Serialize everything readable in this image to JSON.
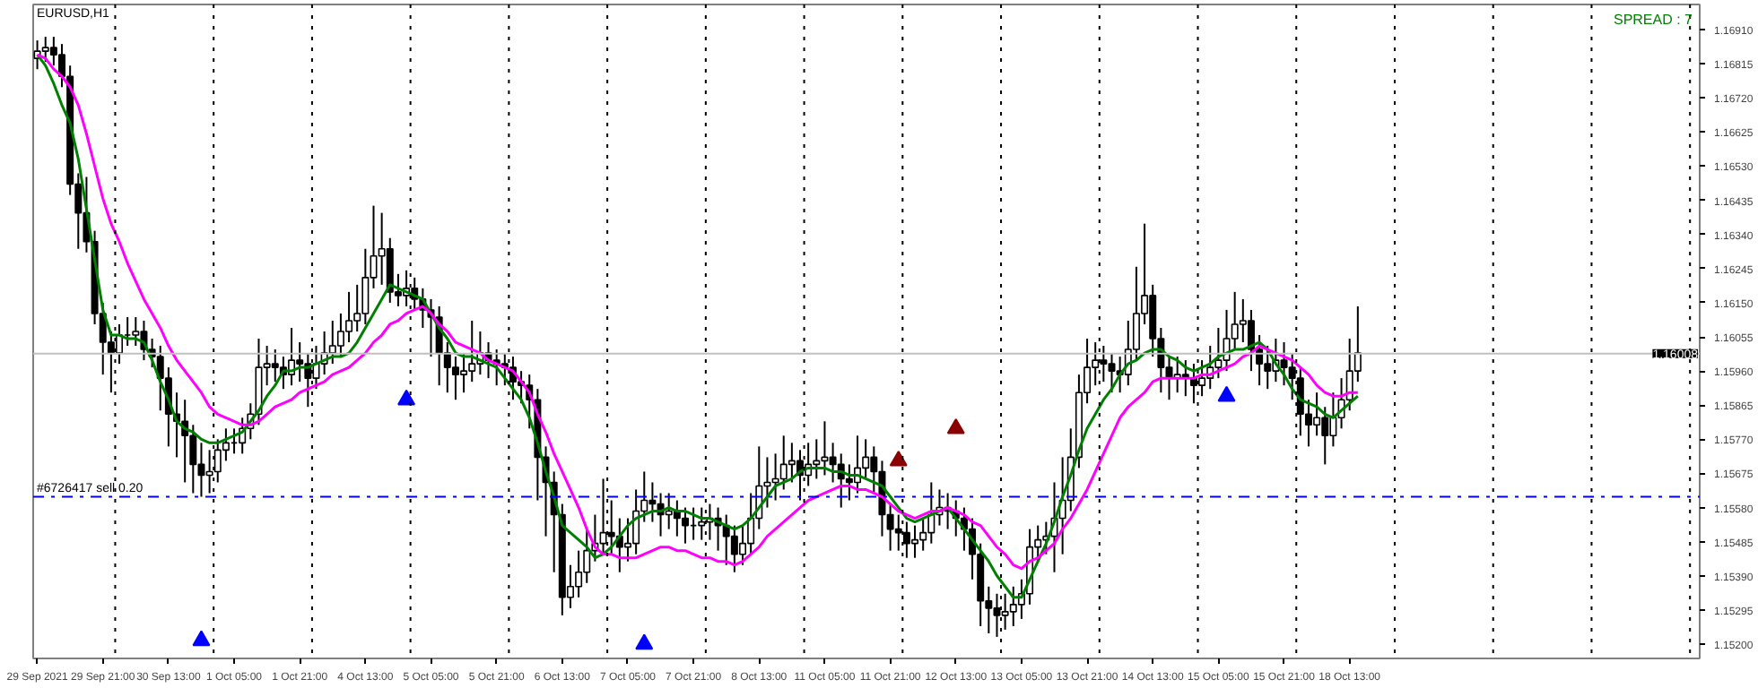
{
  "chart_data": {
    "type": "candlestick",
    "title": "EURUSD,H1",
    "annotations": [
      "SPREAD : 7"
    ],
    "color": "#000000",
    "categories": [
      "29 Sep 2021",
      null,
      null,
      null,
      null,
      null,
      null,
      null,
      "29 Sep 21:00",
      null,
      null,
      null,
      null,
      null,
      null,
      null,
      "30 Sep 13:00",
      null,
      null,
      null,
      null,
      null,
      null,
      null,
      "1 Oct 05:00",
      null,
      null,
      null,
      null,
      null,
      null,
      null,
      "1 Oct 21:00",
      null,
      null,
      null,
      null,
      null,
      null,
      null,
      "4 Oct 13:00",
      null,
      null,
      null,
      null,
      null,
      null,
      null,
      "5 Oct 05:00",
      null,
      null,
      null,
      null,
      null,
      null,
      null,
      "5 Oct 21:00",
      null,
      null,
      null,
      null,
      null,
      null,
      null,
      "6 Oct 13:00",
      null,
      null,
      null,
      null,
      null,
      null,
      null,
      "7 Oct 05:00",
      null,
      null,
      null,
      null,
      null,
      null,
      null,
      "7 Oct 21:00",
      null,
      null,
      null,
      null,
      null,
      null,
      null,
      "8 Oct 13:00",
      null,
      null,
      null,
      null,
      null,
      null,
      null,
      "11 Oct 05:00",
      null,
      null,
      null,
      null,
      null,
      null,
      null,
      "11 Oct 21:00",
      null,
      null,
      null,
      null,
      null,
      null,
      null,
      "12 Oct 13:00",
      null,
      null,
      null,
      null,
      null,
      null,
      null,
      "13 Oct 05:00",
      null,
      null,
      null,
      null,
      null,
      null,
      null,
      "13 Oct 21:00",
      null,
      null,
      null,
      null,
      null,
      null,
      null,
      "14 Oct 13:00",
      null,
      null,
      null,
      null,
      null,
      null,
      null,
      "15 Oct 05:00",
      null,
      null,
      null,
      null,
      null,
      null,
      null,
      "15 Oct 21:00",
      null,
      null,
      null,
      null,
      null,
      null,
      null,
      "18 Oct 13:00",
      null
    ],
    "ohlc": [
      [
        1.1683,
        1.1688,
        1.168,
        1.1685
      ],
      [
        1.1685,
        1.1689,
        1.1682,
        1.1686
      ],
      [
        1.1686,
        1.1689,
        1.1681,
        1.1684
      ],
      [
        1.1684,
        1.1687,
        1.1675,
        1.1678
      ],
      [
        1.1678,
        1.1681,
        1.1645,
        1.1648
      ],
      [
        1.1648,
        1.1651,
        1.163,
        1.164
      ],
      [
        1.164,
        1.165,
        1.1629,
        1.1632
      ],
      [
        1.1632,
        1.1635,
        1.1609,
        1.1612
      ],
      [
        1.1612,
        1.1615,
        1.1595,
        1.1604
      ],
      [
        1.1604,
        1.1607,
        1.159,
        1.1601
      ],
      [
        1.1601,
        1.1609,
        1.1598,
        1.1606
      ],
      [
        1.1606,
        1.1611,
        1.1603,
        1.1606
      ],
      [
        1.1606,
        1.1611,
        1.1603,
        1.1607
      ],
      [
        1.1607,
        1.161,
        1.1599,
        1.1602
      ],
      [
        1.1602,
        1.1605,
        1.1597,
        1.16
      ],
      [
        1.16,
        1.1603,
        1.1585,
        1.1594
      ],
      [
        1.1594,
        1.1597,
        1.1575,
        1.1584
      ],
      [
        1.1584,
        1.159,
        1.1572,
        1.1582
      ],
      [
        1.1582,
        1.1588,
        1.1565,
        1.1578
      ],
      [
        1.1578,
        1.1581,
        1.1562,
        1.157
      ],
      [
        1.157,
        1.1576,
        1.1561,
        1.1567
      ],
      [
        1.1567,
        1.1574,
        1.1562,
        1.1568
      ],
      [
        1.1568,
        1.1577,
        1.1565,
        1.1574
      ],
      [
        1.1574,
        1.158,
        1.1571,
        1.1576
      ],
      [
        1.1576,
        1.158,
        1.1573,
        1.1576
      ],
      [
        1.1576,
        1.1583,
        1.1573,
        1.158
      ],
      [
        1.158,
        1.1587,
        1.1577,
        1.1584
      ],
      [
        1.1584,
        1.1605,
        1.1581,
        1.1597
      ],
      [
        1.1597,
        1.1603,
        1.1592,
        1.1598
      ],
      [
        1.1598,
        1.1602,
        1.1593,
        1.1597
      ],
      [
        1.1597,
        1.16,
        1.1591,
        1.1595
      ],
      [
        1.1595,
        1.1608,
        1.1592,
        1.1599
      ],
      [
        1.1599,
        1.1604,
        1.1593,
        1.1598
      ],
      [
        1.1598,
        1.1601,
        1.1586,
        1.1594
      ],
      [
        1.1594,
        1.1603,
        1.1591,
        1.1598
      ],
      [
        1.1598,
        1.1607,
        1.1595,
        1.1601
      ],
      [
        1.1601,
        1.161,
        1.1598,
        1.1603
      ],
      [
        1.1603,
        1.1612,
        1.16,
        1.1607
      ],
      [
        1.1607,
        1.1618,
        1.1604,
        1.161
      ],
      [
        1.161,
        1.162,
        1.1607,
        1.1612
      ],
      [
        1.1612,
        1.163,
        1.1609,
        1.1622
      ],
      [
        1.1622,
        1.1642,
        1.1619,
        1.1628
      ],
      [
        1.1628,
        1.164,
        1.162,
        1.163
      ],
      [
        1.163,
        1.1633,
        1.1615,
        1.1618
      ],
      [
        1.1618,
        1.1623,
        1.1614,
        1.1617
      ],
      [
        1.1617,
        1.1624,
        1.1614,
        1.1619
      ],
      [
        1.1619,
        1.1622,
        1.1613,
        1.1616
      ],
      [
        1.1616,
        1.1619,
        1.1608,
        1.1613
      ],
      [
        1.1613,
        1.1616,
        1.16,
        1.1611
      ],
      [
        1.1611,
        1.1614,
        1.1592,
        1.1601
      ],
      [
        1.1601,
        1.1604,
        1.159,
        1.1597
      ],
      [
        1.1597,
        1.16,
        1.1588,
        1.1595
      ],
      [
        1.1595,
        1.1601,
        1.159,
        1.1596
      ],
      [
        1.1596,
        1.161,
        1.1593,
        1.1598
      ],
      [
        1.1598,
        1.1607,
        1.1595,
        1.1601
      ],
      [
        1.1601,
        1.1604,
        1.1594,
        1.1599
      ],
      [
        1.1599,
        1.1602,
        1.1592,
        1.1598
      ],
      [
        1.1598,
        1.1601,
        1.1592,
        1.1597
      ],
      [
        1.1597,
        1.16,
        1.1588,
        1.1593
      ],
      [
        1.1593,
        1.1596,
        1.1587,
        1.1592
      ],
      [
        1.1592,
        1.1595,
        1.158,
        1.1588
      ],
      [
        1.1588,
        1.1591,
        1.156,
        1.1572
      ],
      [
        1.1572,
        1.1575,
        1.155,
        1.1565
      ],
      [
        1.1565,
        1.1568,
        1.154,
        1.1556
      ],
      [
        1.1556,
        1.1559,
        1.1528,
        1.1533
      ],
      [
        1.1533,
        1.1542,
        1.153,
        1.1536
      ],
      [
        1.1536,
        1.1546,
        1.1533,
        1.154
      ],
      [
        1.154,
        1.1552,
        1.1537,
        1.1546
      ],
      [
        1.1546,
        1.1556,
        1.1543,
        1.1548
      ],
      [
        1.1548,
        1.1566,
        1.1545,
        1.1551
      ],
      [
        1.1551,
        1.156,
        1.1545,
        1.155
      ],
      [
        1.155,
        1.1555,
        1.154,
        1.1547
      ],
      [
        1.1547,
        1.1555,
        1.1543,
        1.1548
      ],
      [
        1.1548,
        1.1563,
        1.1545,
        1.1557
      ],
      [
        1.1557,
        1.1568,
        1.1554,
        1.156
      ],
      [
        1.156,
        1.1565,
        1.1554,
        1.1559
      ],
      [
        1.1559,
        1.1562,
        1.155,
        1.1556
      ],
      [
        1.1556,
        1.1562,
        1.1552,
        1.1557
      ],
      [
        1.1557,
        1.156,
        1.155,
        1.1555
      ],
      [
        1.1555,
        1.1558,
        1.1548,
        1.1553
      ],
      [
        1.1553,
        1.1558,
        1.1549,
        1.1553
      ],
      [
        1.1553,
        1.1558,
        1.1549,
        1.1554
      ],
      [
        1.1554,
        1.1559,
        1.1549,
        1.1555
      ],
      [
        1.1555,
        1.1558,
        1.1546,
        1.1553
      ],
      [
        1.1553,
        1.1556,
        1.1542,
        1.155
      ],
      [
        1.155,
        1.1553,
        1.154,
        1.1545
      ],
      [
        1.1545,
        1.1553,
        1.1542,
        1.1548
      ],
      [
        1.1548,
        1.1562,
        1.1545,
        1.1555
      ],
      [
        1.1555,
        1.1575,
        1.1552,
        1.1564
      ],
      [
        1.1564,
        1.1572,
        1.1558,
        1.1565
      ],
      [
        1.1565,
        1.1573,
        1.156,
        1.1566
      ],
      [
        1.1566,
        1.1578,
        1.1563,
        1.157
      ],
      [
        1.157,
        1.1576,
        1.1565,
        1.1571
      ],
      [
        1.1571,
        1.1574,
        1.156,
        1.1567
      ],
      [
        1.1567,
        1.1576,
        1.1564,
        1.157
      ],
      [
        1.157,
        1.1577,
        1.1566,
        1.1571
      ],
      [
        1.1571,
        1.1582,
        1.1567,
        1.1572
      ],
      [
        1.1572,
        1.1576,
        1.1565,
        1.157
      ],
      [
        1.157,
        1.1573,
        1.1558,
        1.1566
      ],
      [
        1.1566,
        1.157,
        1.156,
        1.1565
      ],
      [
        1.1565,
        1.1578,
        1.1562,
        1.1569
      ],
      [
        1.1569,
        1.1577,
        1.1566,
        1.1572
      ],
      [
        1.1572,
        1.1575,
        1.1562,
        1.1568
      ],
      [
        1.1568,
        1.1571,
        1.155,
        1.1556
      ],
      [
        1.1556,
        1.1559,
        1.1546,
        1.1552
      ],
      [
        1.1552,
        1.1556,
        1.1546,
        1.1551
      ],
      [
        1.1551,
        1.1554,
        1.1544,
        1.1548
      ],
      [
        1.1548,
        1.1553,
        1.1544,
        1.1549
      ],
      [
        1.1549,
        1.1555,
        1.1546,
        1.1551
      ],
      [
        1.1551,
        1.1565,
        1.1548,
        1.1556
      ],
      [
        1.1556,
        1.1563,
        1.1553,
        1.1558
      ],
      [
        1.1558,
        1.1562,
        1.1552,
        1.1557
      ],
      [
        1.1557,
        1.156,
        1.155,
        1.1555
      ],
      [
        1.1555,
        1.1558,
        1.1546,
        1.1552
      ],
      [
        1.1552,
        1.1555,
        1.1538,
        1.1545
      ],
      [
        1.1545,
        1.1548,
        1.1525,
        1.1532
      ],
      [
        1.1532,
        1.1536,
        1.1523,
        1.153
      ],
      [
        1.153,
        1.1534,
        1.1522,
        1.1528
      ],
      [
        1.1528,
        1.1534,
        1.1524,
        1.1529
      ],
      [
        1.1529,
        1.1536,
        1.1525,
        1.1531
      ],
      [
        1.1531,
        1.1538,
        1.1527,
        1.1534
      ],
      [
        1.1534,
        1.1552,
        1.1531,
        1.1547
      ],
      [
        1.1547,
        1.1553,
        1.1543,
        1.1549
      ],
      [
        1.1549,
        1.1554,
        1.1545,
        1.155
      ],
      [
        1.155,
        1.1565,
        1.154,
        1.1555
      ],
      [
        1.1555,
        1.1572,
        1.1545,
        1.156
      ],
      [
        1.156,
        1.158,
        1.1557,
        1.1572
      ],
      [
        1.1572,
        1.1595,
        1.1569,
        1.159
      ],
      [
        1.159,
        1.1605,
        1.1587,
        1.1597
      ],
      [
        1.1597,
        1.1604,
        1.1592,
        1.1599
      ],
      [
        1.1599,
        1.1603,
        1.1593,
        1.1598
      ],
      [
        1.1598,
        1.1601,
        1.159,
        1.1596
      ],
      [
        1.1596,
        1.16,
        1.159,
        1.1595
      ],
      [
        1.1595,
        1.161,
        1.1592,
        1.1602
      ],
      [
        1.1602,
        1.1625,
        1.1599,
        1.1612
      ],
      [
        1.1612,
        1.1637,
        1.1609,
        1.1617
      ],
      [
        1.1617,
        1.162,
        1.16,
        1.1605
      ],
      [
        1.1605,
        1.1608,
        1.159,
        1.1597
      ],
      [
        1.1597,
        1.16,
        1.1588,
        1.1594
      ],
      [
        1.1594,
        1.16,
        1.159,
        1.1595
      ],
      [
        1.1595,
        1.1599,
        1.1589,
        1.1594
      ],
      [
        1.1594,
        1.1598,
        1.1587,
        1.1592
      ],
      [
        1.1592,
        1.1599,
        1.1589,
        1.1594
      ],
      [
        1.1594,
        1.1603,
        1.1591,
        1.1597
      ],
      [
        1.1597,
        1.1608,
        1.1594,
        1.1599
      ],
      [
        1.1599,
        1.1613,
        1.1596,
        1.1605
      ],
      [
        1.1605,
        1.1618,
        1.1602,
        1.1609
      ],
      [
        1.1609,
        1.1616,
        1.1604,
        1.161
      ],
      [
        1.161,
        1.1613,
        1.1596,
        1.1602
      ],
      [
        1.1602,
        1.1606,
        1.1592,
        1.1598
      ],
      [
        1.1598,
        1.1603,
        1.1591,
        1.1596
      ],
      [
        1.1596,
        1.1605,
        1.1593,
        1.1599
      ],
      [
        1.1599,
        1.1604,
        1.1592,
        1.1597
      ],
      [
        1.1597,
        1.1601,
        1.1588,
        1.1594
      ],
      [
        1.1594,
        1.1597,
        1.1578,
        1.1584
      ],
      [
        1.1584,
        1.1588,
        1.1575,
        1.1581
      ],
      [
        1.1581,
        1.159,
        1.1578,
        1.1583
      ],
      [
        1.1583,
        1.1586,
        1.157,
        1.1578
      ],
      [
        1.1578,
        1.159,
        1.1575,
        1.1583
      ],
      [
        1.1583,
        1.1594,
        1.158,
        1.1588
      ],
      [
        1.1588,
        1.1605,
        1.1585,
        1.1596
      ],
      [
        1.1596,
        1.1614,
        1.1593,
        1.1601
      ]
    ],
    "series": [
      {
        "type": "line",
        "color": "#008000",
        "values": [
          1.1684,
          1.1681,
          1.1676,
          1.167,
          1.1665,
          1.1655,
          1.1641,
          1.1627,
          1.1613,
          1.1606,
          1.1606,
          1.1605,
          1.1605,
          1.1604,
          1.1599,
          1.1593,
          1.1588,
          1.1582,
          1.158,
          1.1579,
          1.1577,
          1.1576,
          1.1576,
          1.1577,
          1.1578,
          1.1579,
          1.1582,
          1.1585,
          1.1589,
          1.1592,
          1.1596,
          1.1596,
          1.1597,
          1.1597,
          1.1598,
          1.1599,
          1.16,
          1.16,
          1.1601,
          1.1604,
          1.1608,
          1.1612,
          1.1616,
          1.162,
          1.1619,
          1.1618,
          1.1617,
          1.1616,
          1.1612,
          1.1608,
          1.1605,
          1.1601,
          1.16,
          1.16,
          1.1599,
          1.1598,
          1.1597,
          1.1594,
          1.1591,
          1.1588,
          1.1583,
          1.1576,
          1.1568,
          1.1561,
          1.1553,
          1.1551,
          1.1549,
          1.1547,
          1.1544,
          1.1545,
          1.1547,
          1.155,
          1.1553,
          1.1555,
          1.1556,
          1.1557,
          1.1557,
          1.1558,
          1.1557,
          1.1557,
          1.1556,
          1.1555,
          1.1555,
          1.1554,
          1.1553,
          1.1552,
          1.1553,
          1.1555,
          1.1558,
          1.1561,
          1.1564,
          1.1565,
          1.1566,
          1.1568,
          1.1569,
          1.1569,
          1.1569,
          1.1568,
          1.1568,
          1.1567,
          1.1567,
          1.1566,
          1.1565,
          1.1564,
          1.1561,
          1.1558,
          1.1555,
          1.1554,
          1.1555,
          1.1556,
          1.1557,
          1.1558,
          1.1555,
          1.1552,
          1.1549,
          1.1546,
          1.1543,
          1.1539,
          1.1536,
          1.1533,
          1.1533,
          1.1538,
          1.1543,
          1.1548,
          1.1554,
          1.1561,
          1.1567,
          1.1574,
          1.158,
          1.1584,
          1.1588,
          1.1591,
          1.1595,
          1.1598,
          1.1599,
          1.1601,
          1.1602,
          1.1602,
          1.16,
          1.1599,
          1.1597,
          1.1596,
          1.1597,
          1.1598,
          1.16,
          1.1601,
          1.1602,
          1.1602,
          1.1603,
          1.1604,
          1.1602,
          1.1598,
          1.1595,
          1.1591,
          1.1588,
          1.1587,
          1.1586,
          1.1584,
          1.1583,
          1.1585,
          1.1587,
          1.1589
        ]
      },
      {
        "type": "line",
        "color": "#ff00ff",
        "values": [
          1.1684,
          1.1683,
          1.168,
          1.1678,
          1.1675,
          1.167,
          1.1662,
          1.1653,
          1.1644,
          1.1637,
          1.1632,
          1.1626,
          1.1621,
          1.1616,
          1.1612,
          1.1608,
          1.1603,
          1.1599,
          1.1596,
          1.1593,
          1.159,
          1.1586,
          1.1584,
          1.1583,
          1.1582,
          1.1581,
          1.1581,
          1.1582,
          1.1584,
          1.1586,
          1.1587,
          1.1588,
          1.159,
          1.1591,
          1.1592,
          1.1593,
          1.1595,
          1.1596,
          1.1597,
          1.1599,
          1.1601,
          1.1604,
          1.1606,
          1.1609,
          1.161,
          1.1612,
          1.1613,
          1.1614,
          1.1612,
          1.1609,
          1.1607,
          1.1604,
          1.1603,
          1.1602,
          1.1601,
          1.1599,
          1.1598,
          1.1597,
          1.1596,
          1.1593,
          1.159,
          1.1584,
          1.1579,
          1.1573,
          1.1568,
          1.1563,
          1.1558,
          1.1552,
          1.1547,
          1.1545,
          1.1545,
          1.1544,
          1.1544,
          1.1544,
          1.1545,
          1.1546,
          1.1547,
          1.1547,
          1.1546,
          1.1546,
          1.1545,
          1.1544,
          1.1544,
          1.1543,
          1.1543,
          1.1542,
          1.1543,
          1.1545,
          1.1547,
          1.155,
          1.1552,
          1.1554,
          1.1556,
          1.1558,
          1.156,
          1.1561,
          1.1562,
          1.1563,
          1.1564,
          1.1564,
          1.1563,
          1.1563,
          1.1562,
          1.1561,
          1.1559,
          1.1557,
          1.1556,
          1.1555,
          1.1556,
          1.1557,
          1.1557,
          1.1558,
          1.1557,
          1.1556,
          1.1554,
          1.1553,
          1.155,
          1.1547,
          1.1545,
          1.1542,
          1.1541,
          1.1543,
          1.1544,
          1.1546,
          1.1548,
          1.1552,
          1.1555,
          1.1559,
          1.1563,
          1.1568,
          1.1573,
          1.1578,
          1.1583,
          1.1586,
          1.1588,
          1.159,
          1.1593,
          1.1594,
          1.1594,
          1.1594,
          1.1594,
          1.1594,
          1.1595,
          1.1595,
          1.1596,
          1.1597,
          1.1598,
          1.16,
          1.1601,
          1.1603,
          1.1602,
          1.1601,
          1.16,
          1.1599,
          1.1597,
          1.1595,
          1.1592,
          1.159,
          1.1589,
          1.1589,
          1.159,
          1.159
        ]
      },
      {
        "type": "scatter",
        "marker": "triangle",
        "color": "#0000ff",
        "values": [
          null,
          null,
          null,
          null,
          null,
          null,
          null,
          null,
          null,
          null,
          null,
          null,
          null,
          null,
          null,
          null,
          null,
          null,
          null,
          null,
          1.1521,
          null,
          null,
          null,
          null,
          null,
          null,
          null,
          null,
          null,
          null,
          null,
          null,
          null,
          null,
          null,
          null,
          null,
          null,
          null,
          null,
          null,
          null,
          null,
          null,
          1.1588,
          null,
          null,
          null,
          null,
          null,
          null,
          null,
          null,
          null,
          null,
          null,
          null,
          null,
          null,
          null,
          null,
          null,
          null,
          null,
          null,
          null,
          null,
          null,
          null,
          null,
          null,
          null,
          null,
          1.152,
          null,
          null,
          null,
          null,
          null,
          null,
          null,
          null,
          null,
          null,
          null,
          null,
          null,
          null,
          null,
          null,
          null,
          null,
          null,
          null,
          null,
          null,
          null,
          null,
          null,
          null,
          null,
          null,
          null,
          null,
          null,
          null,
          null,
          null,
          null,
          null,
          null,
          null,
          null,
          null,
          null,
          null,
          null,
          null,
          null,
          null,
          null,
          null,
          null,
          null,
          null,
          null,
          null,
          null,
          null,
          null,
          null,
          null,
          null,
          null,
          null,
          null,
          null,
          null,
          null,
          null,
          null,
          null,
          null,
          null,
          1.1589,
          null,
          null,
          null,
          null,
          null,
          null,
          null,
          null,
          null,
          null,
          null,
          null,
          null,
          null,
          null,
          null
        ]
      },
      {
        "type": "scatter",
        "marker": "triangle",
        "color": "#8b0000",
        "values": [
          null,
          null,
          null,
          null,
          null,
          null,
          null,
          null,
          null,
          null,
          null,
          null,
          null,
          null,
          null,
          null,
          null,
          null,
          null,
          null,
          null,
          null,
          null,
          null,
          null,
          null,
          null,
          null,
          null,
          null,
          null,
          null,
          null,
          null,
          null,
          null,
          null,
          null,
          null,
          null,
          null,
          null,
          null,
          null,
          null,
          null,
          null,
          null,
          null,
          null,
          null,
          null,
          null,
          null,
          null,
          null,
          null,
          null,
          null,
          null,
          null,
          null,
          null,
          null,
          null,
          null,
          null,
          null,
          null,
          null,
          null,
          null,
          null,
          null,
          null,
          null,
          null,
          null,
          null,
          null,
          null,
          null,
          null,
          null,
          null,
          null,
          null,
          null,
          null,
          null,
          null,
          null,
          null,
          null,
          null,
          null,
          null,
          null,
          null,
          null,
          null,
          null,
          null,
          null,
          null,
          1.1571,
          null,
          null,
          null,
          null,
          null,
          null,
          1.158,
          null,
          null,
          null,
          null,
          null,
          null,
          null,
          null,
          null,
          null,
          null,
          null,
          null,
          null,
          null,
          null,
          null,
          null,
          null,
          null,
          null,
          null,
          null,
          null,
          null,
          null,
          null,
          null,
          null,
          null,
          null,
          null,
          null,
          null,
          null,
          null,
          null,
          null,
          null,
          null,
          null,
          null,
          null,
          null,
          null,
          null,
          null,
          null,
          null
        ]
      }
    ],
    "ref_lines": [
      {
        "axis": "y",
        "value": 1.16008,
        "label": "1.16008",
        "color": "#c0c0c0",
        "line_style": "solid"
      },
      {
        "axis": "y",
        "value": 1.1561,
        "label": "#6726417 sell 0.20",
        "color": "#0000ff",
        "line_style": "dashdot"
      }
    ],
    "ylim": [
      1.1516,
      1.1698
    ],
    "yticks": [
      {
        "value": 1.152,
        "label": "1.15200"
      },
      {
        "value": 1.15295,
        "label": "1.15295"
      },
      {
        "value": 1.1539,
        "label": "1.15390"
      },
      {
        "value": 1.15485,
        "label": "1.15485"
      },
      {
        "value": 1.1558,
        "label": "1.15580"
      },
      {
        "value": 1.15675,
        "label": "1.15675"
      },
      {
        "value": 1.1577,
        "label": "1.15770"
      },
      {
        "value": 1.15865,
        "label": "1.15865"
      },
      {
        "value": 1.1596,
        "label": "1.15960"
      },
      {
        "value": 1.16055,
        "label": "1.16055"
      },
      {
        "value": 1.1615,
        "label": "1.16150"
      },
      {
        "value": 1.16245,
        "label": "1.16245"
      },
      {
        "value": 1.1634,
        "label": "1.16340"
      },
      {
        "value": 1.16435,
        "label": "1.16435"
      },
      {
        "value": 1.1653,
        "label": "1.16530"
      },
      {
        "value": 1.16625,
        "label": "1.16625"
      },
      {
        "value": 1.1672,
        "label": "1.16720"
      },
      {
        "value": 1.16815,
        "label": "1.16815"
      },
      {
        "value": 1.1691,
        "label": "1.16910"
      }
    ],
    "grid": false
  }
}
